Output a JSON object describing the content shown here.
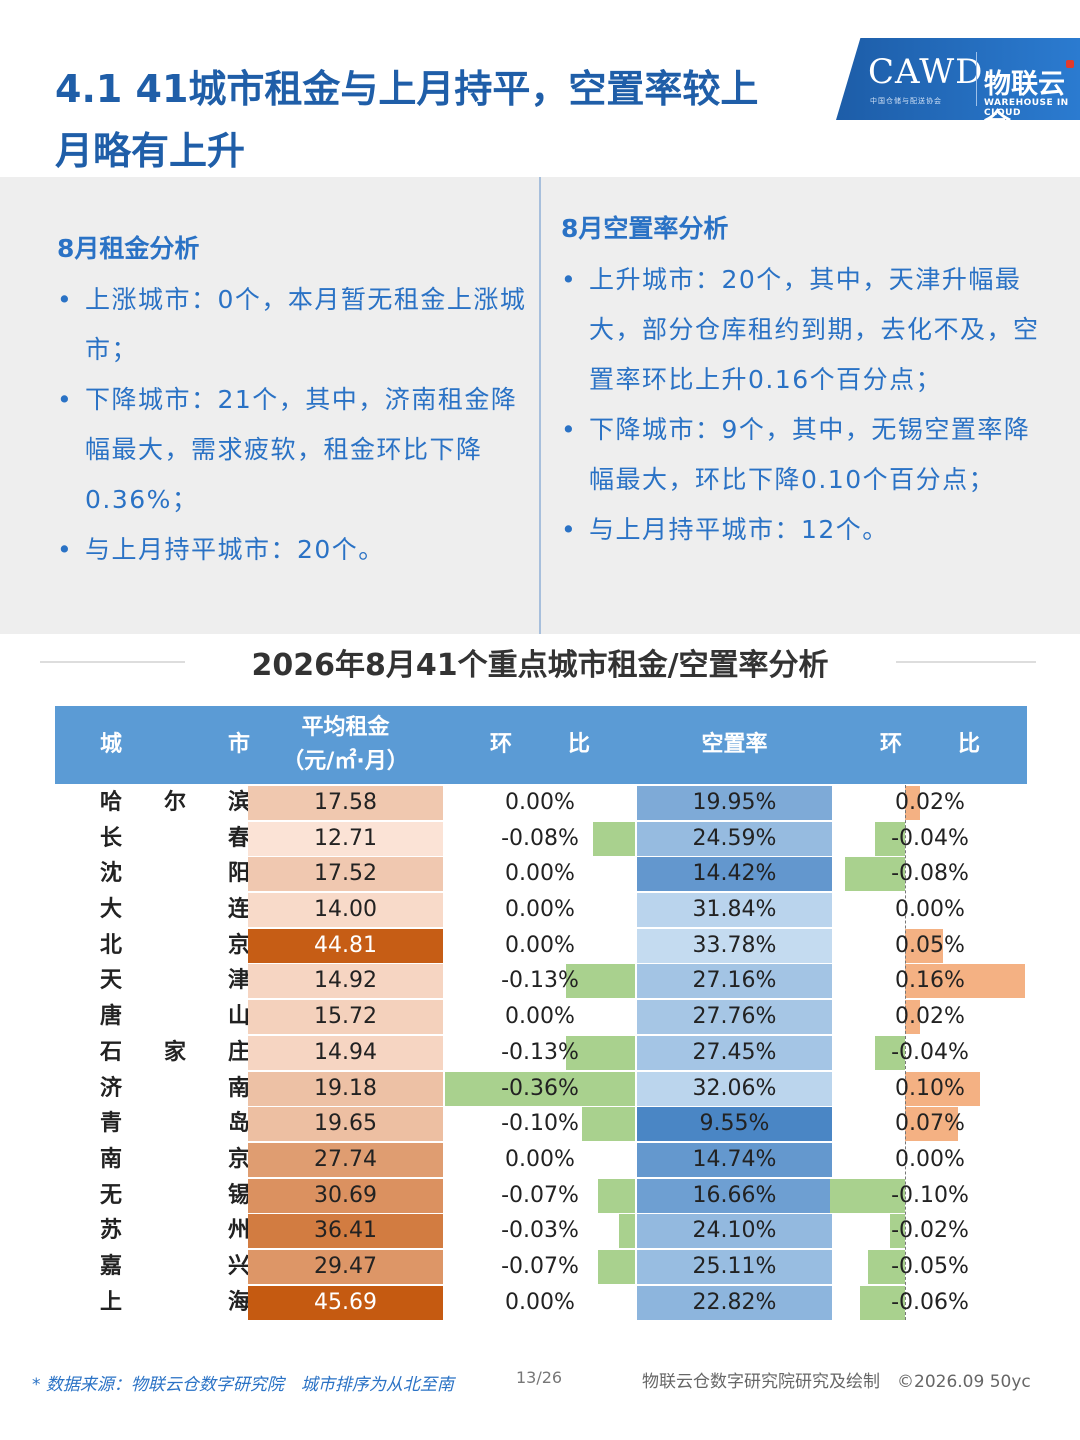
{
  "title": "4.1 41城市租金与上月持平，空置率较上月略有上升",
  "logo": {
    "cawd": "CAWD",
    "cawd_sub": "中国仓储与配送协会",
    "wl": "物联云仓",
    "wl_sub": "WAREHOUSE IN CLOUD"
  },
  "left": {
    "heading": "8月租金分析",
    "items": [
      "上涨城市：0个，本月暂无租金上涨城市；",
      "下降城市：21个，其中，济南租金降幅最大，需求疲软，租金环比下降0.36%；",
      "与上月持平城市：20个。"
    ]
  },
  "right": {
    "heading": "8月空置率分析",
    "items": [
      "上升城市：20个，其中，天津升幅最大，部分仓库租约到期，去化不及，空置率环比上升0.16个百分点；",
      "下降城市：9个，其中，无锡空置率降幅最大，环比下降0.10个百分点；",
      "与上月持平城市：12个。"
    ]
  },
  "bullet": "•",
  "section_title": "2026年8月41个重点城市租金/空置率分析",
  "table": {
    "headers": {
      "city_a": "城",
      "city_b": "市",
      "rent_1": "平均租金",
      "rent_2": "（元/㎡·月）",
      "chg_a": "环",
      "chg_b": "比",
      "vac": "空置率",
      "vchg_a": "环",
      "vchg_b": "比"
    },
    "colors": {
      "header": "#5b9bd5",
      "rent_low": "#fbe3d6",
      "rent_high": "#c55a11",
      "vac_low": "#c4dbf0",
      "vac_high": "#4a86c5",
      "neg_bar": "#a9d18e",
      "pos_bar": "#f4b183"
    },
    "rows": [
      {
        "city": [
          "哈",
          "尔",
          "滨"
        ],
        "rent": "17.58",
        "rent_chg": "0.00%",
        "vacancy": "19.95%",
        "vac_chg": "0.02%"
      },
      {
        "city": [
          "长",
          "春"
        ],
        "rent": "12.71",
        "rent_chg": "-0.08%",
        "vacancy": "24.59%",
        "vac_chg": "-0.04%"
      },
      {
        "city": [
          "沈",
          "阳"
        ],
        "rent": "17.52",
        "rent_chg": "0.00%",
        "vacancy": "14.42%",
        "vac_chg": "-0.08%"
      },
      {
        "city": [
          "大",
          "连"
        ],
        "rent": "14.00",
        "rent_chg": "0.00%",
        "vacancy": "31.84%",
        "vac_chg": "0.00%"
      },
      {
        "city": [
          "北",
          "京"
        ],
        "rent": "44.81",
        "rent_chg": "0.00%",
        "vacancy": "33.78%",
        "vac_chg": "0.05%"
      },
      {
        "city": [
          "天",
          "津"
        ],
        "rent": "14.92",
        "rent_chg": "-0.13%",
        "vacancy": "27.16%",
        "vac_chg": "0.16%"
      },
      {
        "city": [
          "唐",
          "山"
        ],
        "rent": "15.72",
        "rent_chg": "0.00%",
        "vacancy": "27.76%",
        "vac_chg": "0.02%"
      },
      {
        "city": [
          "石",
          "家",
          "庄"
        ],
        "rent": "14.94",
        "rent_chg": "-0.13%",
        "vacancy": "27.45%",
        "vac_chg": "-0.04%"
      },
      {
        "city": [
          "济",
          "南"
        ],
        "rent": "19.18",
        "rent_chg": "-0.36%",
        "vacancy": "32.06%",
        "vac_chg": "0.10%"
      },
      {
        "city": [
          "青",
          "岛"
        ],
        "rent": "19.65",
        "rent_chg": "-0.10%",
        "vacancy": "9.55%",
        "vac_chg": "0.07%"
      },
      {
        "city": [
          "南",
          "京"
        ],
        "rent": "27.74",
        "rent_chg": "0.00%",
        "vacancy": "14.74%",
        "vac_chg": "0.00%"
      },
      {
        "city": [
          "无",
          "锡"
        ],
        "rent": "30.69",
        "rent_chg": "-0.07%",
        "vacancy": "16.66%",
        "vac_chg": "-0.10%"
      },
      {
        "city": [
          "苏",
          "州"
        ],
        "rent": "36.41",
        "rent_chg": "-0.03%",
        "vacancy": "24.10%",
        "vac_chg": "-0.02%"
      },
      {
        "city": [
          "嘉",
          "兴"
        ],
        "rent": "29.47",
        "rent_chg": "-0.07%",
        "vacancy": "25.11%",
        "vac_chg": "-0.05%"
      },
      {
        "city": [
          "上",
          "海"
        ],
        "rent": "45.69",
        "rent_chg": "0.00%",
        "vacancy": "22.82%",
        "vac_chg": "-0.06%"
      }
    ]
  },
  "footer": {
    "source": "* 数据来源：物联云仓数字研究院　城市排序为从北至南",
    "page": "13/26",
    "credit": "物联云仓数字研究院研究及绘制　©2026.09 50yc"
  }
}
